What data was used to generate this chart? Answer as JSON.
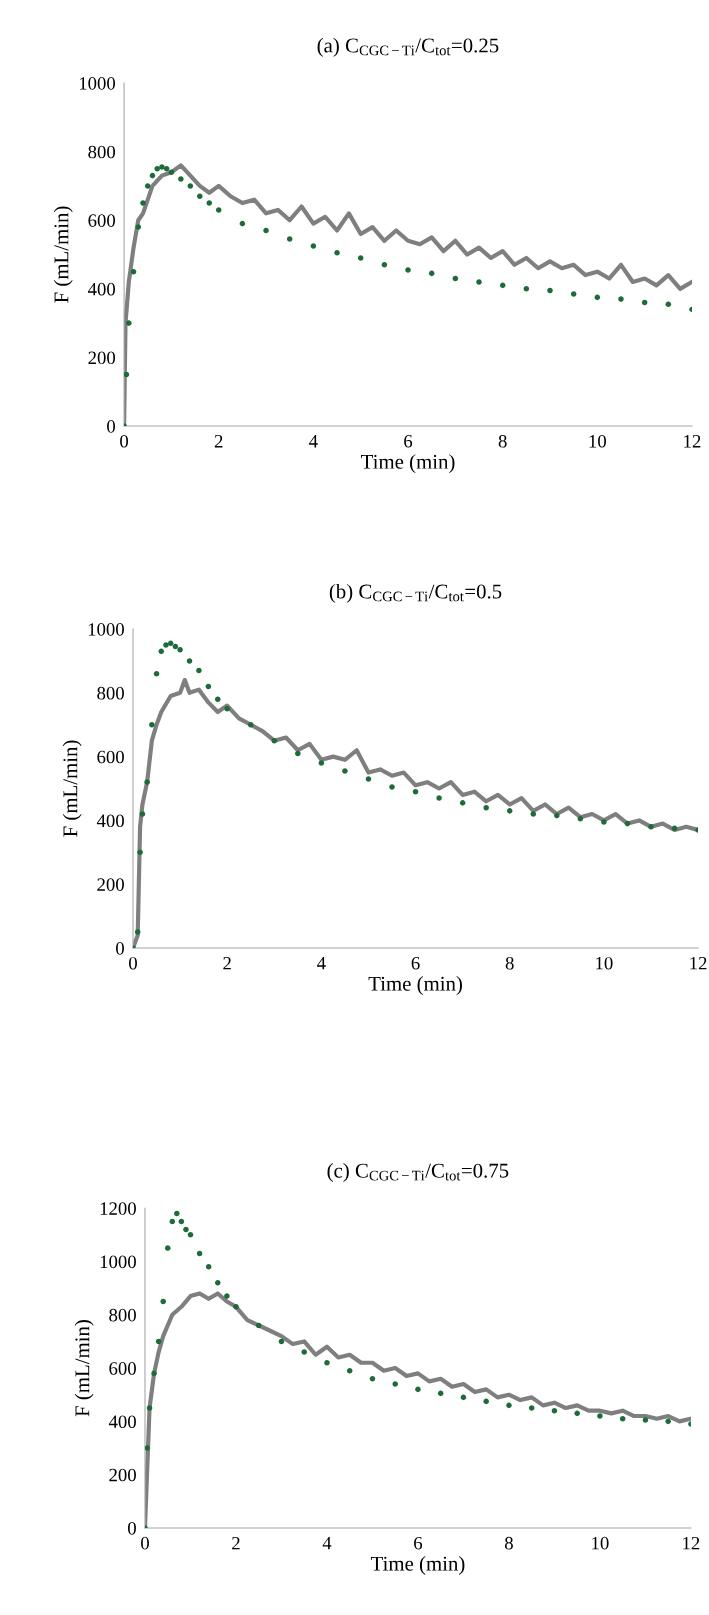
{
  "chart_data": [
    {
      "type": "line",
      "title": "(a) C$_{CGC−Ti}$/C$_{tot}$=0.25",
      "xlabel": "Time (min)",
      "ylabel": "F (mL/min)",
      "xlim": [
        0,
        12
      ],
      "xticks": [
        0,
        2,
        4,
        6,
        8,
        10,
        12
      ],
      "ylim": [
        0,
        1000
      ],
      "yticks": [
        0,
        200,
        400,
        600,
        800,
        1000
      ],
      "grid": false,
      "series": [
        {
          "color": "#7f7f7f",
          "x": [
            0,
            0.03,
            0.1,
            0.2,
            0.3,
            0.4,
            0.5,
            0.6,
            0.8,
            1.0,
            1.2,
            1.4,
            1.6,
            1.8,
            2.0,
            2.25,
            2.5,
            2.75,
            3.0,
            3.25,
            3.5,
            3.75,
            4.0,
            4.25,
            4.5,
            4.75,
            5.0,
            5.25,
            5.5,
            5.75,
            6.0,
            6.25,
            6.5,
            6.75,
            7.0,
            7.25,
            7.5,
            7.75,
            8.0,
            8.25,
            8.5,
            8.75,
            9.0,
            9.25,
            9.5,
            9.75,
            10.0,
            10.25,
            10.5,
            10.75,
            11.0,
            11.25,
            11.5,
            11.75,
            12.0
          ],
          "values": [
            0,
            300,
            420,
            520,
            600,
            620,
            660,
            700,
            730,
            740,
            760,
            730,
            700,
            680,
            700,
            670,
            650,
            660,
            620,
            630,
            600,
            640,
            590,
            610,
            570,
            620,
            560,
            580,
            540,
            570,
            540,
            530,
            550,
            510,
            540,
            500,
            520,
            490,
            510,
            470,
            490,
            460,
            480,
            460,
            470,
            440,
            450,
            430,
            470,
            420,
            430,
            410,
            440,
            400,
            420
          ]
        },
        {
          "type": "scatter",
          "marker": "circle",
          "color": "#1e6b3a",
          "x": [
            0,
            0.05,
            0.1,
            0.2,
            0.3,
            0.4,
            0.5,
            0.6,
            0.7,
            0.8,
            0.9,
            1.0,
            1.2,
            1.4,
            1.6,
            1.8,
            2.0,
            2.5,
            3.0,
            3.5,
            4.0,
            4.5,
            5.0,
            5.5,
            6.0,
            6.5,
            7.0,
            7.5,
            8.0,
            8.5,
            9.0,
            9.5,
            10.0,
            10.5,
            11.0,
            11.5,
            12.0
          ],
          "values": [
            0,
            150,
            300,
            450,
            580,
            650,
            700,
            730,
            750,
            755,
            750,
            740,
            720,
            700,
            670,
            650,
            630,
            590,
            570,
            545,
            525,
            505,
            490,
            470,
            455,
            445,
            430,
            420,
            410,
            400,
            395,
            385,
            375,
            370,
            360,
            355,
            340
          ]
        }
      ]
    },
    {
      "type": "line",
      "title": "(b) C$_{CGC−Ti}$/C$_{tot}$=0.5",
      "xlabel": "Time (min)",
      "ylabel": "F (mL/min)",
      "xlim": [
        0,
        12
      ],
      "xticks": [
        0,
        2,
        4,
        6,
        8,
        10,
        12
      ],
      "ylim": [
        0,
        1000
      ],
      "yticks": [
        0,
        200,
        400,
        600,
        800,
        1000
      ],
      "grid": false,
      "series": [
        {
          "color": "#7f7f7f",
          "x": [
            0,
            0.1,
            0.15,
            0.2,
            0.3,
            0.4,
            0.5,
            0.6,
            0.8,
            1.0,
            1.1,
            1.2,
            1.4,
            1.6,
            1.8,
            2.0,
            2.25,
            2.5,
            2.75,
            3.0,
            3.25,
            3.5,
            3.75,
            4.0,
            4.25,
            4.5,
            4.75,
            5.0,
            5.25,
            5.5,
            5.75,
            6.0,
            6.25,
            6.5,
            6.75,
            7.0,
            7.25,
            7.5,
            7.75,
            8.0,
            8.25,
            8.5,
            8.75,
            9.0,
            9.25,
            9.5,
            9.75,
            10.0,
            10.25,
            10.5,
            10.75,
            11.0,
            11.25,
            11.5,
            11.75,
            12.0
          ],
          "values": [
            0,
            40,
            380,
            450,
            520,
            650,
            700,
            740,
            790,
            800,
            840,
            800,
            810,
            770,
            740,
            760,
            720,
            700,
            680,
            650,
            660,
            620,
            640,
            590,
            600,
            590,
            620,
            550,
            560,
            540,
            550,
            510,
            520,
            500,
            520,
            480,
            490,
            460,
            480,
            450,
            470,
            430,
            450,
            420,
            440,
            410,
            420,
            400,
            420,
            390,
            400,
            380,
            390,
            370,
            380,
            370
          ]
        },
        {
          "type": "scatter",
          "marker": "circle",
          "color": "#1e6b3a",
          "x": [
            0,
            0.1,
            0.15,
            0.2,
            0.3,
            0.4,
            0.5,
            0.6,
            0.7,
            0.8,
            0.9,
            1.0,
            1.2,
            1.4,
            1.6,
            1.8,
            2.0,
            2.5,
            3.0,
            3.5,
            4.0,
            4.5,
            5.0,
            5.5,
            6.0,
            6.5,
            7.0,
            7.5,
            8.0,
            8.5,
            9.0,
            9.5,
            10.0,
            10.5,
            11.0,
            11.5,
            12.0
          ],
          "values": [
            0,
            50,
            300,
            420,
            520,
            700,
            860,
            930,
            950,
            955,
            945,
            935,
            900,
            870,
            820,
            780,
            750,
            700,
            650,
            610,
            580,
            555,
            530,
            505,
            490,
            470,
            455,
            440,
            430,
            420,
            415,
            405,
            395,
            390,
            380,
            375,
            370
          ]
        }
      ]
    },
    {
      "type": "line",
      "title": "(c) C$_{CGC−Ti}$/C$_{tot}$=0.75",
      "xlabel": "Time (min)",
      "ylabel": "F (mL/min)",
      "xlim": [
        0,
        12
      ],
      "xticks": [
        0,
        2,
        4,
        6,
        8,
        10,
        12
      ],
      "ylim": [
        0,
        1200
      ],
      "yticks": [
        0,
        200,
        400,
        600,
        800,
        1000,
        1200
      ],
      "grid": false,
      "series": [
        {
          "color": "#7f7f7f",
          "x": [
            0,
            0.1,
            0.2,
            0.3,
            0.4,
            0.5,
            0.6,
            0.8,
            1.0,
            1.2,
            1.4,
            1.6,
            1.8,
            2.0,
            2.25,
            2.5,
            2.75,
            3.0,
            3.25,
            3.5,
            3.75,
            4.0,
            4.25,
            4.5,
            4.75,
            5.0,
            5.25,
            5.5,
            5.75,
            6.0,
            6.25,
            6.5,
            6.75,
            7.0,
            7.25,
            7.5,
            7.75,
            8.0,
            8.25,
            8.5,
            8.75,
            9.0,
            9.25,
            9.5,
            9.75,
            10.0,
            10.25,
            10.5,
            10.75,
            11.0,
            11.25,
            11.5,
            11.75,
            12.0
          ],
          "values": [
            0,
            450,
            580,
            660,
            720,
            760,
            800,
            830,
            870,
            880,
            860,
            880,
            850,
            830,
            780,
            760,
            740,
            720,
            690,
            700,
            650,
            680,
            640,
            650,
            620,
            620,
            590,
            600,
            570,
            580,
            550,
            560,
            530,
            540,
            510,
            520,
            490,
            500,
            480,
            490,
            460,
            470,
            450,
            460,
            440,
            440,
            430,
            440,
            420,
            420,
            410,
            420,
            400,
            410
          ]
        },
        {
          "type": "scatter",
          "marker": "circle",
          "color": "#1e6b3a",
          "x": [
            0,
            0.05,
            0.1,
            0.2,
            0.3,
            0.4,
            0.5,
            0.6,
            0.7,
            0.8,
            0.9,
            1.0,
            1.2,
            1.4,
            1.6,
            1.8,
            2.0,
            2.5,
            3.0,
            3.5,
            4.0,
            4.5,
            5.0,
            5.5,
            6.0,
            6.5,
            7.0,
            7.5,
            8.0,
            8.5,
            9.0,
            9.5,
            10.0,
            10.5,
            11.0,
            11.5,
            12.0
          ],
          "values": [
            0,
            300,
            450,
            580,
            700,
            850,
            1050,
            1150,
            1180,
            1150,
            1120,
            1100,
            1030,
            980,
            920,
            870,
            830,
            760,
            700,
            660,
            620,
            590,
            560,
            540,
            520,
            505,
            490,
            475,
            460,
            450,
            440,
            430,
            420,
            410,
            405,
            400,
            390
          ]
        }
      ]
    }
  ]
}
